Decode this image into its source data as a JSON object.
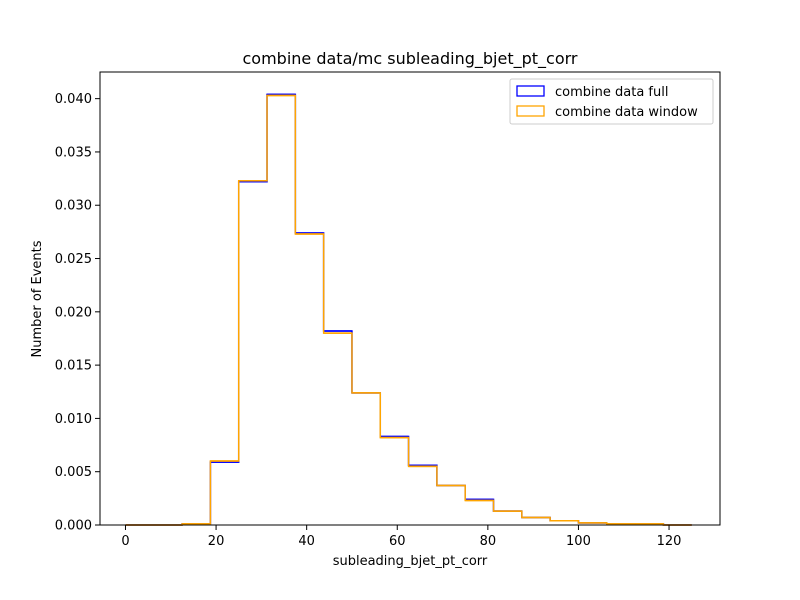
{
  "chart_data": {
    "type": "step-histogram",
    "title": "combine data/mc subleading_bjet_pt_corr",
    "xlabel": "subleading_bjet_pt_corr",
    "ylabel": "Number of Events",
    "xlim": [
      -5.625,
      131.25
    ],
    "ylim": [
      0,
      0.0425
    ],
    "xticks": [
      0,
      20,
      40,
      60,
      80,
      100,
      120
    ],
    "yticks": [
      0.0,
      0.005,
      0.01,
      0.015,
      0.02,
      0.025,
      0.03,
      0.035,
      0.04
    ],
    "ytick_labels": [
      "0.000",
      "0.005",
      "0.010",
      "0.015",
      "0.020",
      "0.025",
      "0.030",
      "0.035",
      "0.040"
    ],
    "bin_edges": [
      0,
      6.25,
      12.5,
      18.75,
      25,
      31.25,
      37.5,
      43.75,
      50,
      56.25,
      62.5,
      68.75,
      75,
      81.25,
      87.5,
      93.75,
      100,
      106.25,
      112.5,
      118.75,
      125
    ],
    "series": [
      {
        "name": "combine data full",
        "color": "#0000ff",
        "values": [
          0.0,
          0.0,
          0.0001,
          0.0059,
          0.0322,
          0.0404,
          0.0274,
          0.0182,
          0.0124,
          0.0083,
          0.0056,
          0.0037,
          0.0024,
          0.0013,
          0.0007,
          0.0004,
          0.0002,
          0.0001,
          0.0001,
          0.0
        ]
      },
      {
        "name": "combine data window",
        "color": "#ffa500",
        "values": [
          0.0,
          0.0,
          0.0001,
          0.006,
          0.0323,
          0.0403,
          0.0273,
          0.018,
          0.0124,
          0.0082,
          0.0055,
          0.0037,
          0.0023,
          0.0013,
          0.0007,
          0.0004,
          0.0002,
          0.0001,
          0.0001,
          0.0
        ]
      }
    ],
    "grid": false,
    "legend_position": "top-right"
  }
}
